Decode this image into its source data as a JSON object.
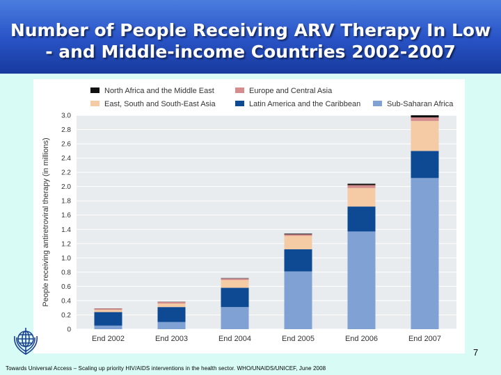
{
  "slide": {
    "title_line1": "Number of People Receiving ARV Therapy In Low",
    "title_line2": "- and Middle-income Countries 2002-2007",
    "slide_number": "7",
    "footer": "Towards Universal Access – Scaling up priority HIV/AIDS interventions in the health sector. WHO/UNAIDS/UNICEF, June 2008",
    "logo_icon": "who-emblem-icon"
  },
  "chart_data": {
    "type": "bar",
    "stacked": true,
    "title": "",
    "xlabel": "",
    "ylabel": "People receiving antiretroviral therapy (in millions)",
    "ylim": [
      0,
      3.0
    ],
    "yticks": [
      {
        "value": 0,
        "label": "0"
      },
      {
        "value": 0.2,
        "label": "0.2"
      },
      {
        "value": 0.4,
        "label": "0.4"
      },
      {
        "value": 0.6,
        "label": "0.6"
      },
      {
        "value": 0.8,
        "label": "0.8"
      },
      {
        "value": 1.0,
        "label": "1.0"
      },
      {
        "value": 1.2,
        "label": "1.2"
      },
      {
        "value": 1.4,
        "label": "1.4"
      },
      {
        "value": 1.6,
        "label": "1.6"
      },
      {
        "value": 1.8,
        "label": "1.8"
      },
      {
        "value": 2.0,
        "label": "2.0"
      },
      {
        "value": 2.2,
        "label": "2.2"
      },
      {
        "value": 2.4,
        "label": "2.4"
      },
      {
        "value": 2.6,
        "label": "2.6"
      },
      {
        "value": 2.8,
        "label": "2.8"
      },
      {
        "value": 3.0,
        "label": "3.0"
      }
    ],
    "grid": true,
    "legend_position": "top",
    "categories": [
      "End 2002",
      "End 2003",
      "End 2004",
      "End 2005",
      "End 2006",
      "End 2007"
    ],
    "series": [
      {
        "name": "Sub-Saharan Africa",
        "color": "#7fa1d4",
        "values": [
          0.05,
          0.1,
          0.31,
          0.81,
          1.37,
          2.12
        ]
      },
      {
        "name": "Latin America and the Caribbean",
        "color": "#0d4a93",
        "values": [
          0.19,
          0.21,
          0.27,
          0.31,
          0.35,
          0.38
        ]
      },
      {
        "name": "East, South and South-East Asia",
        "color": "#f5cba5",
        "values": [
          0.03,
          0.05,
          0.11,
          0.19,
          0.26,
          0.42
        ]
      },
      {
        "name": "Europe and Central Asia",
        "color": "#d48d8c",
        "values": [
          0.02,
          0.02,
          0.02,
          0.02,
          0.04,
          0.05
        ]
      },
      {
        "name": "North Africa and the Middle East",
        "color": "#111111",
        "values": [
          0.002,
          0.003,
          0.005,
          0.01,
          0.02,
          0.03
        ]
      }
    ],
    "legend_order": [
      4,
      2,
      3,
      1,
      0
    ]
  }
}
